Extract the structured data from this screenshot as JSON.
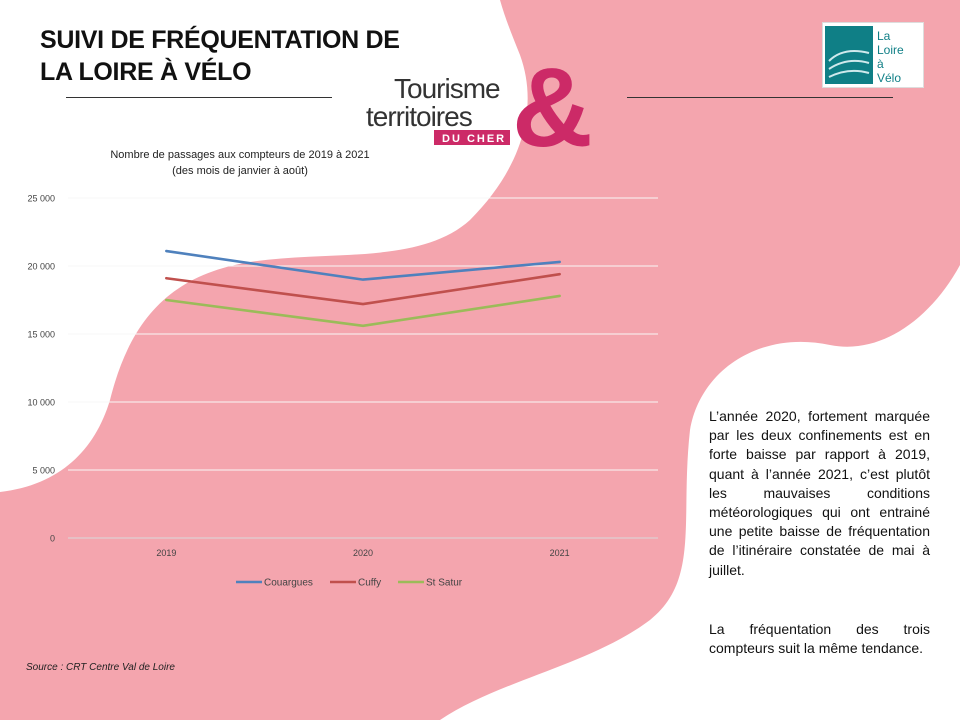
{
  "header": {
    "title_line1": "SUIVI DE FRÉQUENTATION DE",
    "title_line2": "LA LOIRE À VÉLO"
  },
  "logos": {
    "tourisme": {
      "word1": "Tourisme",
      "word2": "territoires",
      "word3": "DU CHER",
      "ampersand": "&"
    },
    "loire_velo": {
      "line1": "La",
      "line2": "Loire",
      "line3": "à",
      "line4": "Vélo"
    }
  },
  "colors": {
    "background_blob": "#f4a5ae",
    "brand_magenta": "#cc2a67",
    "brand_dark": "#333333",
    "loire_teal": "#0f7f86"
  },
  "chart_data": {
    "type": "line",
    "title_line1": "Nombre  de passages aux compteurs de 2019 à 2021",
    "title_line2": "(des mois de janvier à août)",
    "categories": [
      "2019",
      "2020",
      "2021"
    ],
    "ylim": [
      0,
      25000
    ],
    "yticks": [
      0,
      5000,
      10000,
      15000,
      20000,
      25000
    ],
    "ytick_labels": [
      "0",
      "5 000",
      "10 000",
      "15 000",
      "20 000",
      "25 000"
    ],
    "grid": true,
    "legend_position": "bottom",
    "series": [
      {
        "name": "Couargues",
        "color": "#4f81bd",
        "values": [
          21100,
          19000,
          20300
        ]
      },
      {
        "name": "Cuffy",
        "color": "#c0504d",
        "values": [
          19100,
          17200,
          19400
        ]
      },
      {
        "name": "St Satur",
        "color": "#9bbb59",
        "values": [
          17500,
          15600,
          17800
        ]
      }
    ]
  },
  "source": "Source :  CRT Centre Val de Loire",
  "text": {
    "paragraph1": "L’année 2020, fortement marquée par les deux confinements est en forte baisse par rapport à 2019, quant à l’année 2021, c’est plutôt les mauvaises conditions météorologiques qui ont entrainé une petite baisse de fréquentation de l’itinéraire constatée de mai à juillet.",
    "paragraph2": "La fréquentation des trois compteurs suit la même tendance."
  }
}
